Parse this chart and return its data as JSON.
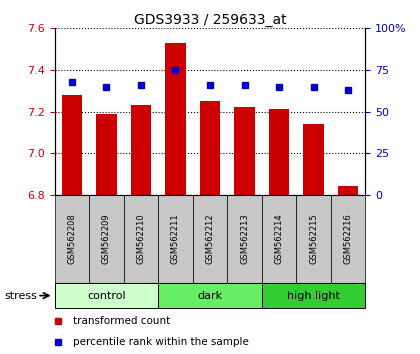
{
  "title": "GDS3933 / 259633_at",
  "samples": [
    "GSM562208",
    "GSM562209",
    "GSM562210",
    "GSM562211",
    "GSM562212",
    "GSM562213",
    "GSM562214",
    "GSM562215",
    "GSM562216"
  ],
  "bar_values": [
    7.28,
    7.19,
    7.23,
    7.53,
    7.25,
    7.22,
    7.21,
    7.14,
    6.84
  ],
  "dot_values": [
    68,
    65,
    66,
    75,
    66,
    66,
    65,
    65,
    63
  ],
  "ylim_left": [
    6.8,
    7.6
  ],
  "ylim_right": [
    0,
    100
  ],
  "yticks_left": [
    6.8,
    7.0,
    7.2,
    7.4,
    7.6
  ],
  "yticks_right": [
    0,
    25,
    50,
    75,
    100
  ],
  "bar_color": "#cc0000",
  "dot_color": "#0000cc",
  "bar_bottom": 6.8,
  "groups": [
    {
      "label": "control",
      "start": 0,
      "end": 3,
      "color": "#ccffcc"
    },
    {
      "label": "dark",
      "start": 3,
      "end": 6,
      "color": "#66ee66"
    },
    {
      "label": "high light",
      "start": 6,
      "end": 9,
      "color": "#33cc33"
    }
  ],
  "stress_label": "stress",
  "legend_items": [
    {
      "label": "transformed count",
      "color": "#cc0000"
    },
    {
      "label": "percentile rank within the sample",
      "color": "#0000cc"
    }
  ]
}
